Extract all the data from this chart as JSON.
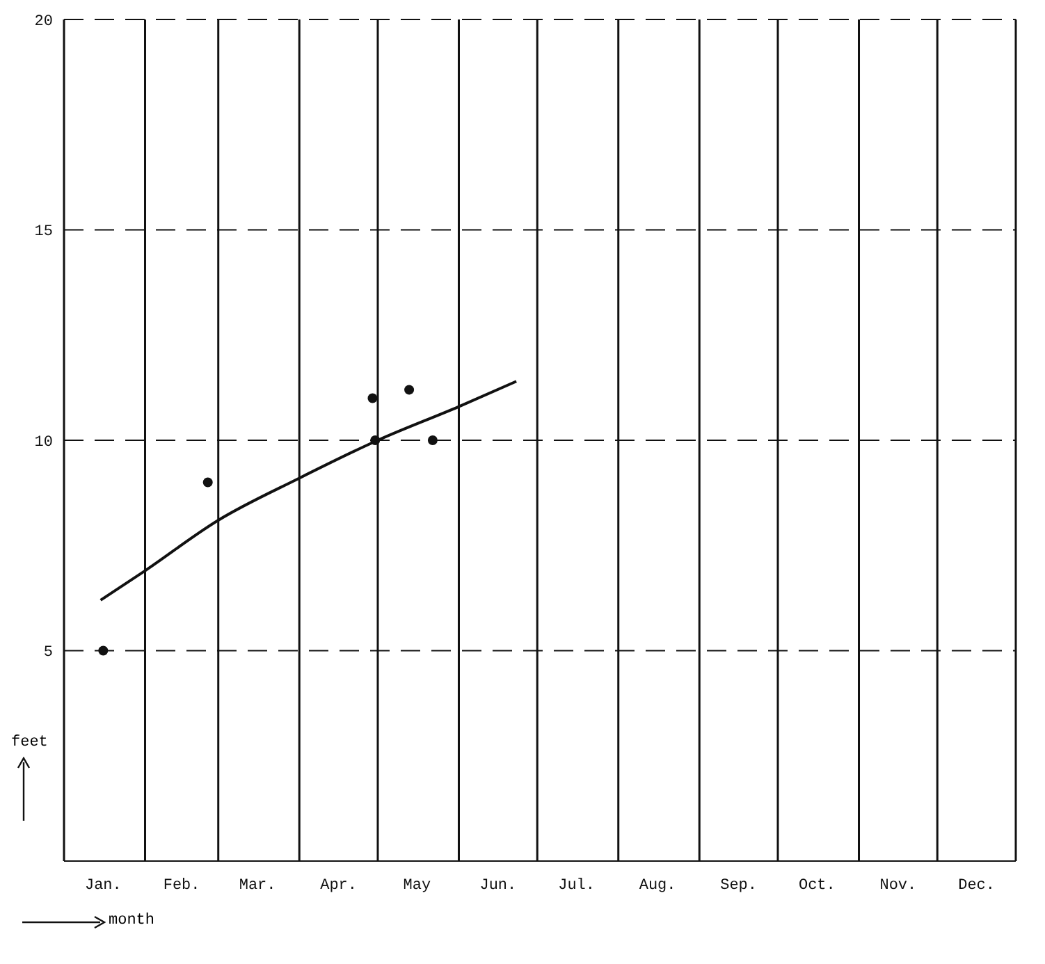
{
  "chart_data": {
    "type": "scatter",
    "xlabel": "month",
    "ylabel": "feet",
    "xlim": [
      "--01-01",
      "--12-31"
    ],
    "ylim": [
      0,
      20
    ],
    "xticks": [
      {
        "value": "--01-01",
        "label": null
      },
      {
        "value": "--01-16",
        "label": "Jan."
      },
      {
        "value": "--02-01",
        "label": null
      },
      {
        "value": "--02-15",
        "label": "Feb."
      },
      {
        "value": "--03-01",
        "label": null
      },
      {
        "value": "--03-16",
        "label": "Mar."
      },
      {
        "value": "--04-01",
        "label": null
      },
      {
        "value": "--04-16",
        "label": "Apr."
      },
      {
        "value": "--05-01",
        "label": null
      },
      {
        "value": "--05-16",
        "label": "May"
      },
      {
        "value": "--06-01",
        "label": null
      },
      {
        "value": "--06-16",
        "label": "Jun."
      },
      {
        "value": "--07-01",
        "label": null
      },
      {
        "value": "--07-16",
        "label": "Jul."
      },
      {
        "value": "--08-01",
        "label": null
      },
      {
        "value": "--08-16",
        "label": "Aug."
      },
      {
        "value": "--09-01",
        "label": null
      },
      {
        "value": "--09-16",
        "label": "Sep."
      },
      {
        "value": "--10-01",
        "label": null
      },
      {
        "value": "--10-16",
        "label": "Oct."
      },
      {
        "value": "--11-01",
        "label": null
      },
      {
        "value": "--11-16",
        "label": "Nov."
      },
      {
        "value": "--12-01",
        "label": null
      },
      {
        "value": "--12-16",
        "label": "Dec."
      },
      {
        "value": "--12-31",
        "label": null
      }
    ],
    "yticks": [
      5,
      10,
      15,
      20
    ],
    "grid": true,
    "marker": "circle",
    "series": [
      {
        "color": "#111111",
        "x": [
          "--01-16",
          "--02-25",
          "--04-29",
          "--04-30",
          "--05-13",
          "--05-22"
        ],
        "values": [
          5.0,
          9.0,
          11.0,
          10.0,
          11.2,
          10.0
        ]
      },
      {
        "type": "line",
        "color": "#111111",
        "marker": "none",
        "x": [
          "--01-15",
          "--02-01",
          "--03-01",
          "--04-01",
          "--05-01",
          "--06-01",
          "--06-23"
        ],
        "values": [
          6.2,
          6.9,
          8.1,
          9.1,
          10.0,
          10.8,
          11.4
        ]
      }
    ]
  }
}
